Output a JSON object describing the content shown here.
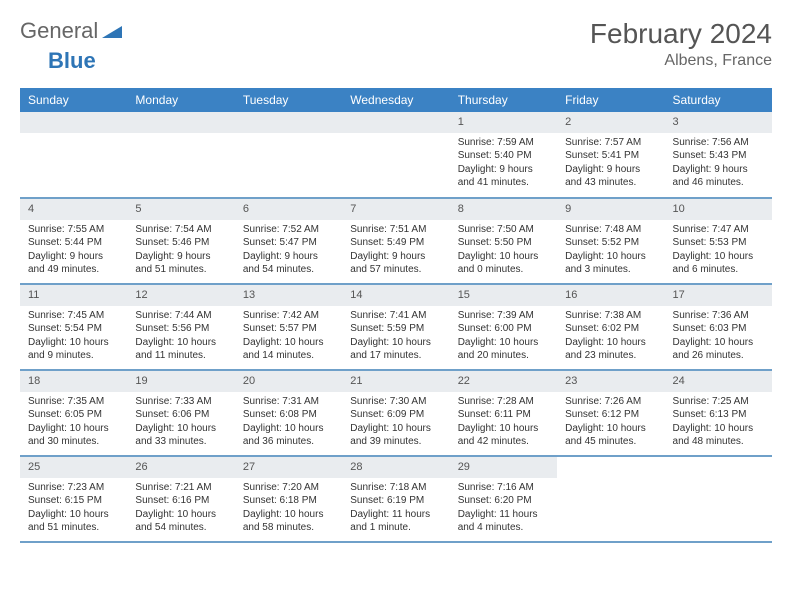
{
  "brand": {
    "part1": "General",
    "part2": "Blue"
  },
  "title": "February 2024",
  "location": "Albens, France",
  "colors": {
    "header_bg": "#3b82c4",
    "header_text": "#ffffff",
    "daynum_bg": "#e9ecef",
    "row_divider": "#6fa0c9",
    "brand_blue": "#2e75b6",
    "text": "#333333"
  },
  "weekdays": [
    "Sunday",
    "Monday",
    "Tuesday",
    "Wednesday",
    "Thursday",
    "Friday",
    "Saturday"
  ],
  "weeks": [
    [
      null,
      null,
      null,
      null,
      {
        "n": "1",
        "sr": "Sunrise: 7:59 AM",
        "ss": "Sunset: 5:40 PM",
        "d1": "Daylight: 9 hours",
        "d2": "and 41 minutes."
      },
      {
        "n": "2",
        "sr": "Sunrise: 7:57 AM",
        "ss": "Sunset: 5:41 PM",
        "d1": "Daylight: 9 hours",
        "d2": "and 43 minutes."
      },
      {
        "n": "3",
        "sr": "Sunrise: 7:56 AM",
        "ss": "Sunset: 5:43 PM",
        "d1": "Daylight: 9 hours",
        "d2": "and 46 minutes."
      }
    ],
    [
      {
        "n": "4",
        "sr": "Sunrise: 7:55 AM",
        "ss": "Sunset: 5:44 PM",
        "d1": "Daylight: 9 hours",
        "d2": "and 49 minutes."
      },
      {
        "n": "5",
        "sr": "Sunrise: 7:54 AM",
        "ss": "Sunset: 5:46 PM",
        "d1": "Daylight: 9 hours",
        "d2": "and 51 minutes."
      },
      {
        "n": "6",
        "sr": "Sunrise: 7:52 AM",
        "ss": "Sunset: 5:47 PM",
        "d1": "Daylight: 9 hours",
        "d2": "and 54 minutes."
      },
      {
        "n": "7",
        "sr": "Sunrise: 7:51 AM",
        "ss": "Sunset: 5:49 PM",
        "d1": "Daylight: 9 hours",
        "d2": "and 57 minutes."
      },
      {
        "n": "8",
        "sr": "Sunrise: 7:50 AM",
        "ss": "Sunset: 5:50 PM",
        "d1": "Daylight: 10 hours",
        "d2": "and 0 minutes."
      },
      {
        "n": "9",
        "sr": "Sunrise: 7:48 AM",
        "ss": "Sunset: 5:52 PM",
        "d1": "Daylight: 10 hours",
        "d2": "and 3 minutes."
      },
      {
        "n": "10",
        "sr": "Sunrise: 7:47 AM",
        "ss": "Sunset: 5:53 PM",
        "d1": "Daylight: 10 hours",
        "d2": "and 6 minutes."
      }
    ],
    [
      {
        "n": "11",
        "sr": "Sunrise: 7:45 AM",
        "ss": "Sunset: 5:54 PM",
        "d1": "Daylight: 10 hours",
        "d2": "and 9 minutes."
      },
      {
        "n": "12",
        "sr": "Sunrise: 7:44 AM",
        "ss": "Sunset: 5:56 PM",
        "d1": "Daylight: 10 hours",
        "d2": "and 11 minutes."
      },
      {
        "n": "13",
        "sr": "Sunrise: 7:42 AM",
        "ss": "Sunset: 5:57 PM",
        "d1": "Daylight: 10 hours",
        "d2": "and 14 minutes."
      },
      {
        "n": "14",
        "sr": "Sunrise: 7:41 AM",
        "ss": "Sunset: 5:59 PM",
        "d1": "Daylight: 10 hours",
        "d2": "and 17 minutes."
      },
      {
        "n": "15",
        "sr": "Sunrise: 7:39 AM",
        "ss": "Sunset: 6:00 PM",
        "d1": "Daylight: 10 hours",
        "d2": "and 20 minutes."
      },
      {
        "n": "16",
        "sr": "Sunrise: 7:38 AM",
        "ss": "Sunset: 6:02 PM",
        "d1": "Daylight: 10 hours",
        "d2": "and 23 minutes."
      },
      {
        "n": "17",
        "sr": "Sunrise: 7:36 AM",
        "ss": "Sunset: 6:03 PM",
        "d1": "Daylight: 10 hours",
        "d2": "and 26 minutes."
      }
    ],
    [
      {
        "n": "18",
        "sr": "Sunrise: 7:35 AM",
        "ss": "Sunset: 6:05 PM",
        "d1": "Daylight: 10 hours",
        "d2": "and 30 minutes."
      },
      {
        "n": "19",
        "sr": "Sunrise: 7:33 AM",
        "ss": "Sunset: 6:06 PM",
        "d1": "Daylight: 10 hours",
        "d2": "and 33 minutes."
      },
      {
        "n": "20",
        "sr": "Sunrise: 7:31 AM",
        "ss": "Sunset: 6:08 PM",
        "d1": "Daylight: 10 hours",
        "d2": "and 36 minutes."
      },
      {
        "n": "21",
        "sr": "Sunrise: 7:30 AM",
        "ss": "Sunset: 6:09 PM",
        "d1": "Daylight: 10 hours",
        "d2": "and 39 minutes."
      },
      {
        "n": "22",
        "sr": "Sunrise: 7:28 AM",
        "ss": "Sunset: 6:11 PM",
        "d1": "Daylight: 10 hours",
        "d2": "and 42 minutes."
      },
      {
        "n": "23",
        "sr": "Sunrise: 7:26 AM",
        "ss": "Sunset: 6:12 PM",
        "d1": "Daylight: 10 hours",
        "d2": "and 45 minutes."
      },
      {
        "n": "24",
        "sr": "Sunrise: 7:25 AM",
        "ss": "Sunset: 6:13 PM",
        "d1": "Daylight: 10 hours",
        "d2": "and 48 minutes."
      }
    ],
    [
      {
        "n": "25",
        "sr": "Sunrise: 7:23 AM",
        "ss": "Sunset: 6:15 PM",
        "d1": "Daylight: 10 hours",
        "d2": "and 51 minutes."
      },
      {
        "n": "26",
        "sr": "Sunrise: 7:21 AM",
        "ss": "Sunset: 6:16 PM",
        "d1": "Daylight: 10 hours",
        "d2": "and 54 minutes."
      },
      {
        "n": "27",
        "sr": "Sunrise: 7:20 AM",
        "ss": "Sunset: 6:18 PM",
        "d1": "Daylight: 10 hours",
        "d2": "and 58 minutes."
      },
      {
        "n": "28",
        "sr": "Sunrise: 7:18 AM",
        "ss": "Sunset: 6:19 PM",
        "d1": "Daylight: 11 hours",
        "d2": "and 1 minute."
      },
      {
        "n": "29",
        "sr": "Sunrise: 7:16 AM",
        "ss": "Sunset: 6:20 PM",
        "d1": "Daylight: 11 hours",
        "d2": "and 4 minutes."
      },
      null,
      null
    ]
  ]
}
